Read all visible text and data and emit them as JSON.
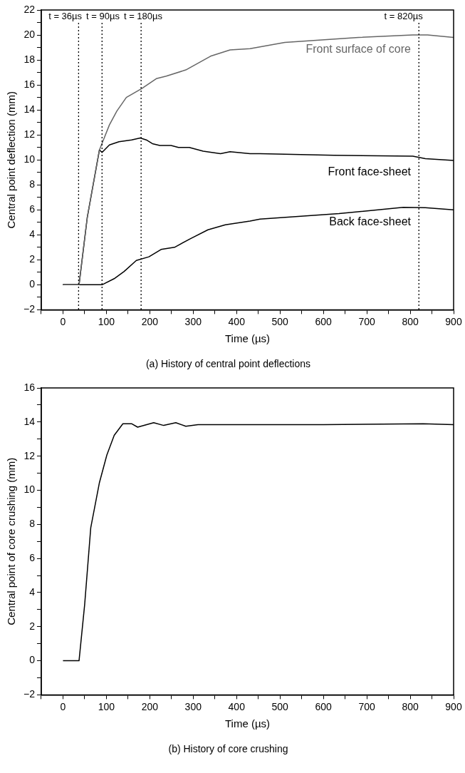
{
  "chart_data": [
    {
      "type": "line",
      "title": "(a) History of central point deflections",
      "xlabel": "Time (µs)",
      "ylabel": "Central point deflection (mm)",
      "xlim": [
        -50,
        900
      ],
      "xticks": [
        {
          "value": -50,
          "label": null
        },
        0,
        {
          "value": 50,
          "label": null
        },
        100,
        {
          "value": 150,
          "label": null
        },
        200,
        {
          "value": 250,
          "label": null
        },
        300,
        {
          "value": 350,
          "label": null
        },
        400,
        {
          "value": 450,
          "label": null
        },
        500,
        {
          "value": 550,
          "label": null
        },
        600,
        {
          "value": 650,
          "label": null
        },
        700,
        {
          "value": 750,
          "label": null
        },
        800,
        {
          "value": 850,
          "label": null
        },
        900
      ],
      "ylim": [
        -2,
        22
      ],
      "yticks": [
        -2,
        {
          "value": -1,
          "label": null
        },
        0,
        {
          "value": 1,
          "label": null
        },
        2,
        {
          "value": 3,
          "label": null
        },
        4,
        {
          "value": 5,
          "label": null
        },
        6,
        {
          "value": 7,
          "label": null
        },
        8,
        {
          "value": 9,
          "label": null
        },
        10,
        {
          "value": 11,
          "label": null
        },
        12,
        {
          "value": 13,
          "label": null
        },
        14,
        {
          "value": 15,
          "label": null
        },
        16,
        {
          "value": 17,
          "label": null
        },
        18,
        {
          "value": 19,
          "label": null
        },
        20,
        {
          "value": 21,
          "label": null
        },
        22
      ],
      "grid": false,
      "legend": false,
      "marker": "none",
      "line_style": "solid",
      "series": [
        {
          "name": "Front surface of core",
          "color": "#666666",
          "x": [
            0,
            37,
            56,
            70,
            84,
            107,
            124,
            146,
            181,
            215,
            238,
            283,
            340,
            385,
            431,
            511,
            681,
            806,
            840,
            900
          ],
          "values": [
            0,
            0,
            5.4,
            8.1,
            10.8,
            12.8,
            13.9,
            15.0,
            15.7,
            16.5,
            16.7,
            17.2,
            18.3,
            18.8,
            18.9,
            19.4,
            19.8,
            20.0,
            20.0,
            19.8
          ]
        },
        {
          "name": "Front face-sheet",
          "color": "#000000",
          "x": [
            0,
            37,
            56,
            70,
            84,
            90,
            107,
            129,
            158,
            178,
            192,
            206,
            223,
            249,
            266,
            291,
            323,
            363,
            385,
            431,
            454,
            624,
            806,
            835,
            900
          ],
          "values": [
            0,
            0,
            5.4,
            8.1,
            10.8,
            10.6,
            11.2,
            11.45,
            11.6,
            11.75,
            11.6,
            11.3,
            11.15,
            11.15,
            11.0,
            11.0,
            10.7,
            10.5,
            10.65,
            10.5,
            10.5,
            10.37,
            10.3,
            10.1,
            9.95
          ]
        },
        {
          "name": "Back face-sheet",
          "color": "#000000",
          "x": [
            0,
            90,
            118,
            141,
            169,
            198,
            226,
            257,
            294,
            334,
            374,
            431,
            454,
            636,
            784,
            835,
            900
          ],
          "values": [
            0,
            0,
            0.49,
            1.07,
            1.95,
            2.24,
            2.83,
            3.0,
            3.7,
            4.4,
            4.8,
            5.1,
            5.26,
            5.7,
            6.2,
            6.17,
            6.0
          ]
        }
      ],
      "ref_lines": [
        {
          "axis": "x",
          "value": 36,
          "label": "t = 36µs",
          "line_style": "dotted",
          "color": "#000000"
        },
        {
          "axis": "x",
          "value": 90,
          "label": "t = 90µs",
          "line_style": "dotted",
          "color": "#000000"
        },
        {
          "axis": "x",
          "value": 180,
          "label": "t = 180µs",
          "line_style": "dotted",
          "color": "#000000"
        },
        {
          "axis": "x",
          "value": 820,
          "label": "t = 820µs",
          "line_style": "dotted",
          "color": "#000000"
        }
      ]
    },
    {
      "type": "line",
      "title": "(b) History of core crushing",
      "xlabel": "Time (µs)",
      "ylabel": "Central point of core crushing (mm)",
      "xlim": [
        -50,
        900
      ],
      "xticks": [
        {
          "value": -50,
          "label": null
        },
        0,
        {
          "value": 50,
          "label": null
        },
        100,
        {
          "value": 150,
          "label": null
        },
        200,
        {
          "value": 250,
          "label": null
        },
        300,
        {
          "value": 350,
          "label": null
        },
        400,
        {
          "value": 450,
          "label": null
        },
        500,
        {
          "value": 550,
          "label": null
        },
        600,
        {
          "value": 650,
          "label": null
        },
        700,
        {
          "value": 750,
          "label": null
        },
        800,
        {
          "value": 850,
          "label": null
        },
        900
      ],
      "ylim": [
        -2,
        16
      ],
      "yticks": [
        -2,
        {
          "value": -1,
          "label": null
        },
        0,
        {
          "value": 1,
          "label": null
        },
        2,
        {
          "value": 3,
          "label": null
        },
        4,
        {
          "value": 5,
          "label": null
        },
        6,
        {
          "value": 7,
          "label": null
        },
        8,
        {
          "value": 9,
          "label": null
        },
        10,
        {
          "value": 11,
          "label": null
        },
        12,
        {
          "value": 13,
          "label": null
        },
        14,
        {
          "value": 15,
          "label": null
        },
        16
      ],
      "grid": false,
      "legend": false,
      "marker": "none",
      "line_style": "solid",
      "series": [
        {
          "color": "#000000",
          "x": [
            0,
            37,
            50,
            64,
            84,
            101,
            118,
            138,
            158,
            172,
            209,
            232,
            260,
            283,
            311,
            600,
            830,
            900
          ],
          "values": [
            0,
            0,
            3.3,
            7.8,
            10.45,
            12.06,
            13.22,
            13.9,
            13.9,
            13.7,
            13.96,
            13.8,
            13.96,
            13.75,
            13.85,
            13.85,
            13.9,
            13.85
          ]
        }
      ]
    }
  ]
}
